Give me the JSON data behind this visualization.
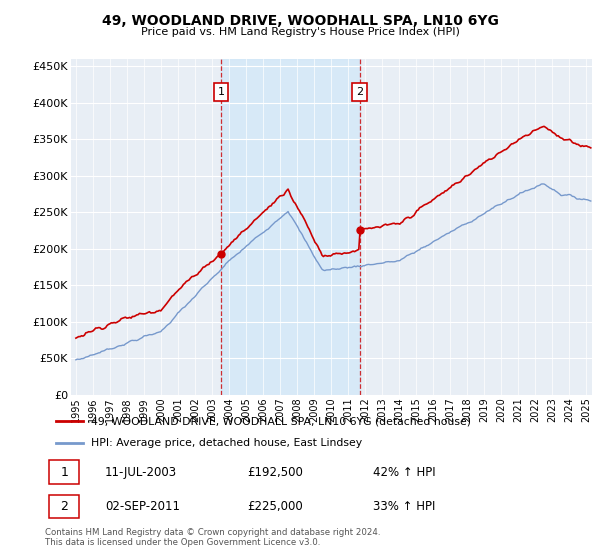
{
  "title": "49, WOODLAND DRIVE, WOODHALL SPA, LN10 6YG",
  "subtitle": "Price paid vs. HM Land Registry's House Price Index (HPI)",
  "legend_line1": "49, WOODLAND DRIVE, WOODHALL SPA, LN10 6YG (detached house)",
  "legend_line2": "HPI: Average price, detached house, East Lindsey",
  "annotation1_date": "11-JUL-2003",
  "annotation1_price": "£192,500",
  "annotation1_hpi": "42% ↑ HPI",
  "annotation2_date": "02-SEP-2011",
  "annotation2_price": "£225,000",
  "annotation2_hpi": "33% ↑ HPI",
  "footer": "Contains HM Land Registry data © Crown copyright and database right 2024.\nThis data is licensed under the Open Government Licence v3.0.",
  "ylim": [
    0,
    460000
  ],
  "yticks": [
    0,
    50000,
    100000,
    150000,
    200000,
    250000,
    300000,
    350000,
    400000,
    450000
  ],
  "red_color": "#cc0000",
  "blue_color": "#7799cc",
  "shade_color": "#ddeeff",
  "background_color": "#e8eef5",
  "marker1_x": 2003.53,
  "marker1_y": 192500,
  "marker2_x": 2011.67,
  "marker2_y": 225000,
  "xmin": 1995.0,
  "xmax": 2025.3
}
